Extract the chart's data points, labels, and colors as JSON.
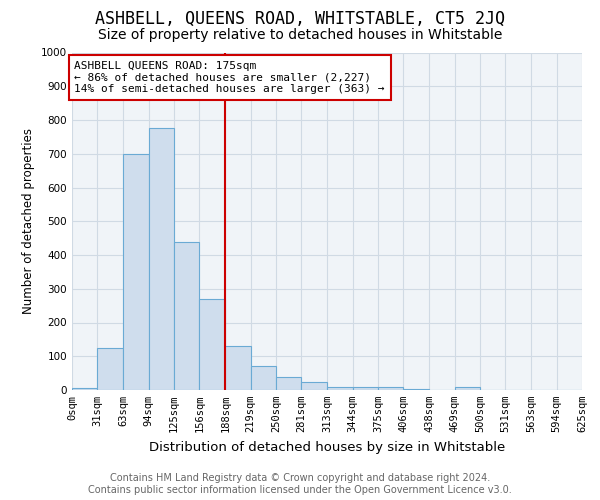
{
  "title": "ASHBELL, QUEENS ROAD, WHITSTABLE, CT5 2JQ",
  "subtitle": "Size of property relative to detached houses in Whitstable",
  "xlabel": "Distribution of detached houses by size in Whitstable",
  "ylabel": "Number of detached properties",
  "footer_line1": "Contains HM Land Registry data © Crown copyright and database right 2024.",
  "footer_line2": "Contains public sector information licensed under the Open Government Licence v3.0.",
  "bins": [
    0,
    31,
    63,
    94,
    125,
    156,
    188,
    219,
    250,
    281,
    313,
    344,
    375,
    406,
    438,
    469,
    500,
    531,
    563,
    594,
    625
  ],
  "bin_labels": [
    "0sqm",
    "31sqm",
    "63sqm",
    "94sqm",
    "125sqm",
    "156sqm",
    "188sqm",
    "219sqm",
    "250sqm",
    "281sqm",
    "313sqm",
    "344sqm",
    "375sqm",
    "406sqm",
    "438sqm",
    "469sqm",
    "500sqm",
    "531sqm",
    "563sqm",
    "594sqm",
    "625sqm"
  ],
  "heights": [
    5,
    125,
    700,
    775,
    440,
    270,
    130,
    70,
    38,
    23,
    10,
    10,
    8,
    3,
    0,
    8,
    0,
    0,
    0,
    0
  ],
  "bar_facecolor": "#cfdded",
  "bar_edgecolor": "#6aaad4",
  "grid_color": "#d0dae4",
  "vline_x": 188,
  "vline_color": "#cc0000",
  "annotation_text": "ASHBELL QUEENS ROAD: 175sqm\n← 86% of detached houses are smaller (2,227)\n14% of semi-detached houses are larger (363) →",
  "annotation_box_color": "#ffffff",
  "annotation_box_edgecolor": "#cc0000",
  "ylim": [
    0,
    1000
  ],
  "title_fontsize": 12,
  "subtitle_fontsize": 10,
  "ylabel_fontsize": 8.5,
  "xlabel_fontsize": 9.5,
  "annotation_fontsize": 8,
  "tick_fontsize": 7.5,
  "footer_fontsize": 7
}
